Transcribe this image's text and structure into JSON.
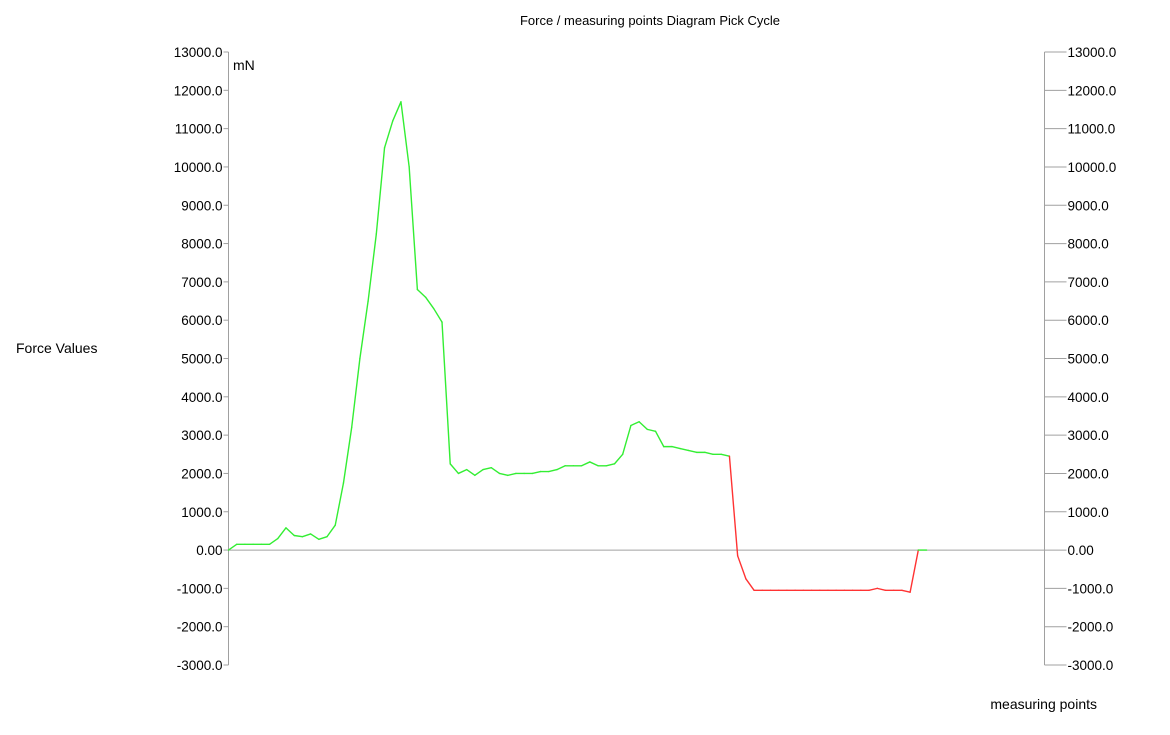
{
  "chart_data": {
    "type": "line",
    "title": "Force / measuring points Diagram Pick Cycle",
    "ylabel": "Force Values",
    "xlabel": "measuring points",
    "yunit": "mN",
    "ylim": [
      -3000,
      13000
    ],
    "yticks": [
      13000,
      12000,
      11000,
      10000,
      9000,
      8000,
      7000,
      6000,
      5000,
      4000,
      3000,
      2000,
      1000,
      0,
      -1000,
      -2000,
      -3000
    ],
    "ytick_labels": [
      "13000.0",
      "12000.0",
      "11000.0",
      "10000.0",
      "9000.0",
      "8000.0",
      "7000.0",
      "6000.0",
      "5000.0",
      "4000.0",
      "3000.0",
      "2000.0",
      "1000.0",
      "0.00",
      "-1000.0",
      "-2000.0",
      "-3000.0"
    ],
    "grid": false,
    "colors": {
      "positive": "#33ee33",
      "negative": "#ff3333",
      "zero_line": "#a0a0a0"
    },
    "xlim": [
      0,
      99
    ],
    "series": [
      {
        "x": [
          0,
          1,
          2,
          3,
          4,
          5,
          6,
          7,
          8,
          9,
          10,
          11,
          12,
          13,
          14,
          15,
          16,
          17,
          18,
          19,
          20,
          21,
          22,
          23,
          24,
          25,
          26,
          27,
          28,
          29,
          30,
          31,
          32,
          33,
          34,
          35,
          36,
          37,
          38,
          39,
          40,
          41,
          42,
          43,
          44,
          45,
          46,
          47,
          48,
          49,
          50,
          51,
          52,
          53,
          54,
          55,
          56,
          57,
          58,
          59,
          60,
          61,
          62,
          63,
          64,
          65,
          66,
          67,
          68,
          69,
          70,
          71,
          72,
          73,
          74,
          75,
          76,
          77,
          78,
          79,
          80,
          81,
          82,
          83,
          84,
          85,
          86,
          87,
          88,
          89,
          90,
          91,
          92,
          93,
          94,
          95,
          96,
          97,
          98,
          99
        ],
        "values": [
          0,
          150,
          150,
          150,
          150,
          150,
          300,
          580,
          380,
          350,
          420,
          280,
          350,
          650,
          1750,
          3200,
          5000,
          6500,
          8250,
          10500,
          11200,
          11700,
          10000,
          6800,
          6600,
          6300,
          5950,
          2250,
          2000,
          2100,
          1950,
          2100,
          2150,
          2000,
          1950,
          2000,
          2000,
          2000,
          2050,
          2050,
          2100,
          2200,
          2200,
          2200,
          2300,
          2200,
          2200,
          2250,
          2500,
          3250,
          3350,
          3150,
          3100,
          2700,
          2700,
          2650,
          2600,
          2550,
          2550,
          2500,
          2500,
          2450,
          -150,
          -750,
          -1050,
          -1050,
          -1050,
          -1050,
          -1050,
          -1050,
          -1050,
          -1050,
          -1050,
          -1050,
          -1050,
          -1050,
          -1050,
          -1050,
          -1050,
          -1000,
          -1050,
          -1050,
          -1050,
          -1100,
          0,
          0,
          0,
          0,
          0,
          0,
          0,
          0,
          0,
          0,
          0,
          0,
          0,
          0,
          0,
          0
        ]
      }
    ]
  }
}
